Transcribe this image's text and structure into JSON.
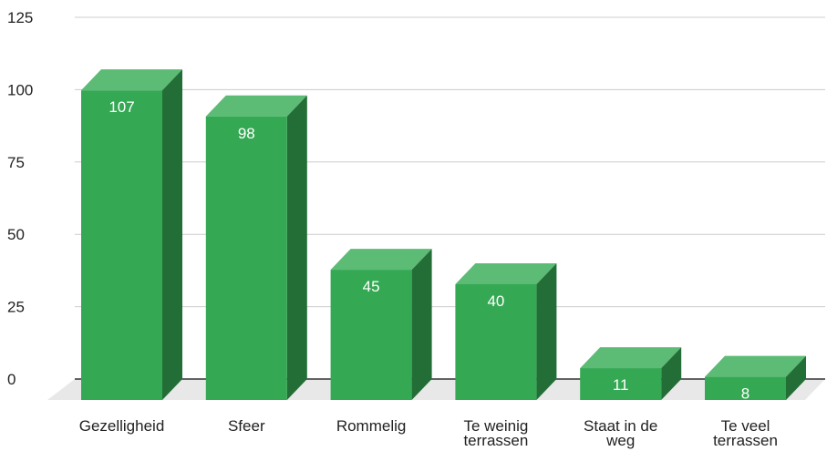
{
  "chart_data": {
    "type": "bar",
    "style": "3d",
    "categories": [
      [
        "Gezelligheid"
      ],
      [
        "Sfeer"
      ],
      [
        "Rommelig"
      ],
      [
        "Te weinig",
        "terrassen"
      ],
      [
        "Staat in de",
        "weg"
      ],
      [
        "Te veel",
        "terrassen"
      ]
    ],
    "values": [
      107,
      98,
      45,
      40,
      11,
      8
    ],
    "data_labels": [
      "107",
      "98",
      "45",
      "40",
      "11",
      "8"
    ],
    "y_ticks": [
      "0",
      "25",
      "50",
      "75",
      "100",
      "125"
    ],
    "ylim": [
      0,
      125
    ],
    "grid": true,
    "legend": "none",
    "colors": {
      "front": "#34a853",
      "top": "#5cbb75",
      "side": "#236e37",
      "floor": "#e8e8e8",
      "grid": "#cccccc",
      "axis": "#333333"
    }
  }
}
